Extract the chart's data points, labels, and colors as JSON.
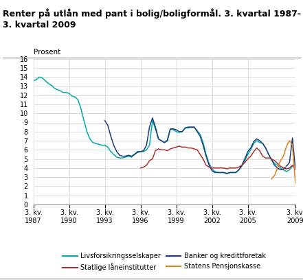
{
  "title": "Renter på utlån med pant i bolig/boligformål. 3. kvartal 1987-\n3. kvartal 2009",
  "prosent_label": "Prosent",
  "ylim": [
    0,
    16
  ],
  "yticks": [
    0,
    1,
    2,
    3,
    4,
    5,
    6,
    7,
    8,
    9,
    10,
    11,
    12,
    13,
    14,
    15,
    16
  ],
  "xtick_labels": [
    "3. kv.\n1987",
    "3. kv.\n1990",
    "3. kv.\n1993",
    "3. kv.\n1996",
    "3. kv.\n1999",
    "3. kv.\n2002",
    "3. kv.\n2005",
    "3. kv.\n2009"
  ],
  "xtick_positions": [
    0,
    12,
    24,
    36,
    48,
    60,
    72,
    88
  ],
  "background_color": "#ffffff",
  "grid_color": "#d0d0d0",
  "series": {
    "livsforsikring": {
      "label": "Livsforsikringsselskaper",
      "color": "#00aaaa",
      "data": [
        13.6,
        13.7,
        14.0,
        13.9,
        13.6,
        13.3,
        13.1,
        12.8,
        12.6,
        12.5,
        12.3,
        12.3,
        12.2,
        11.9,
        11.8,
        11.5,
        10.5,
        9.2,
        8.0,
        7.2,
        6.8,
        6.7,
        6.6,
        6.5,
        6.5,
        6.3,
        5.8,
        5.5,
        5.2,
        5.1,
        5.1,
        5.2,
        5.3,
        5.2,
        5.5,
        5.7,
        5.8,
        5.8,
        6.0,
        6.5,
        9.2,
        8.3,
        7.2,
        7.0,
        6.8,
        7.1,
        8.3,
        8.2,
        8.0,
        7.9,
        8.0,
        8.4,
        8.4,
        8.5,
        8.5,
        8.1,
        7.7,
        6.8,
        5.5,
        4.5,
        3.9,
        3.6,
        3.5,
        3.5,
        3.5,
        3.4,
        3.5,
        3.5,
        3.5,
        3.8,
        4.2,
        4.8,
        5.5,
        6.0,
        6.7,
        7.0,
        6.8,
        6.7,
        6.2,
        5.5,
        4.9,
        4.5,
        4.3,
        4.0,
        3.8,
        3.6,
        3.8,
        4.2,
        4.5
      ]
    },
    "banker": {
      "label": "Banker og kredittforetak",
      "color": "#1a3a7a",
      "data": [
        null,
        null,
        null,
        null,
        null,
        null,
        null,
        null,
        null,
        null,
        null,
        null,
        null,
        null,
        null,
        null,
        null,
        null,
        null,
        null,
        null,
        null,
        null,
        null,
        9.2,
        8.7,
        7.5,
        6.5,
        5.8,
        5.4,
        5.3,
        5.3,
        5.4,
        5.3,
        5.5,
        5.8,
        5.8,
        5.9,
        6.5,
        8.5,
        9.5,
        8.5,
        7.2,
        7.0,
        6.8,
        7.0,
        8.3,
        8.3,
        8.2,
        8.0,
        8.0,
        8.4,
        8.5,
        8.5,
        8.5,
        8.0,
        7.5,
        6.5,
        5.3,
        4.3,
        3.7,
        3.5,
        3.5,
        3.5,
        3.5,
        3.4,
        3.5,
        3.5,
        3.5,
        3.8,
        4.3,
        5.0,
        5.8,
        6.2,
        6.9,
        7.2,
        7.0,
        6.7,
        6.2,
        5.5,
        4.9,
        4.3,
        4.0,
        3.8,
        3.9,
        4.2,
        4.6,
        7.3,
        3.8
      ]
    },
    "statlige": {
      "label": "Statlige låneinstitutter",
      "color": "#b03030",
      "data": [
        null,
        null,
        null,
        null,
        null,
        null,
        null,
        null,
        null,
        null,
        null,
        null,
        null,
        null,
        null,
        null,
        null,
        null,
        null,
        null,
        null,
        null,
        null,
        null,
        null,
        null,
        null,
        null,
        null,
        null,
        null,
        null,
        null,
        null,
        null,
        null,
        4.0,
        4.1,
        4.3,
        4.8,
        5.0,
        5.9,
        6.1,
        6.0,
        6.0,
        5.9,
        6.1,
        6.2,
        6.3,
        6.4,
        6.3,
        6.3,
        6.2,
        6.2,
        6.1,
        6.0,
        5.5,
        5.0,
        4.3,
        4.1,
        4.0,
        4.0,
        4.0,
        4.0,
        4.0,
        3.9,
        4.0,
        4.0,
        4.0,
        4.1,
        4.3,
        4.6,
        5.0,
        5.3,
        5.8,
        6.2,
        5.9,
        5.3,
        5.1,
        5.1,
        5.0,
        4.8,
        4.5,
        4.2,
        4.0,
        3.9,
        4.0,
        4.3,
        3.9
      ]
    },
    "pensjonskasse": {
      "label": "Statens Pensjonskasse",
      "color": "#e08020",
      "data": [
        null,
        null,
        null,
        null,
        null,
        null,
        null,
        null,
        null,
        null,
        null,
        null,
        null,
        null,
        null,
        null,
        null,
        null,
        null,
        null,
        null,
        null,
        null,
        null,
        null,
        null,
        null,
        null,
        null,
        null,
        null,
        null,
        null,
        null,
        null,
        null,
        null,
        null,
        null,
        null,
        null,
        null,
        null,
        null,
        null,
        null,
        null,
        null,
        null,
        null,
        null,
        null,
        null,
        null,
        null,
        null,
        null,
        null,
        null,
        null,
        null,
        null,
        null,
        null,
        null,
        null,
        null,
        null,
        null,
        null,
        null,
        null,
        null,
        null,
        null,
        null,
        null,
        null,
        null,
        null,
        2.8,
        3.2,
        4.0,
        4.8,
        5.3,
        6.4,
        7.0,
        6.5,
        2.3
      ]
    }
  }
}
